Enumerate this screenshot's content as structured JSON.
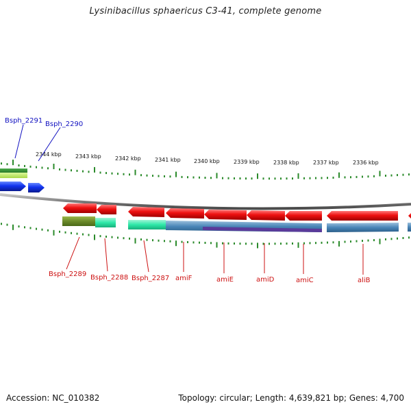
{
  "header": {
    "title": "Lysinibacillus sphaericus C3-41, complete genome"
  },
  "footer": {
    "accession": "Accession: NC_010382",
    "topology": "Topology: circular; Length: 4,639,821 bp; Genes: 4,700"
  },
  "colors": {
    "label_top": "#1010c0",
    "label_bottom": "#cc1010",
    "tick": "#2a8a2a",
    "backbone": "#8a8a8a",
    "gene_red": "#ee1111",
    "gene_blue": "#1133ee",
    "green_block": "#3a9a3a",
    "lime_block": "#b8e65a",
    "olive_block": "#6b8a2a",
    "cyan_block": "#3ee8b0",
    "steelblue_block": "#4a86b8",
    "purple_block": "#5a3a9a"
  },
  "ruler": [
    "2344 kbp",
    "2343 kbp",
    "2342 kbp",
    "2341 kbp",
    "2340 kbp",
    "2339 kbp",
    "2338 kbp",
    "2337 kbp",
    "2336 kbp"
  ],
  "labels_top": [
    "Bsph_2291",
    "Bsph_2290"
  ],
  "labels_bottom": [
    "Bsph_2289",
    "Bsph_2288",
    "Bsph_2287",
    "amiF",
    "amiE",
    "amiD",
    "amiC",
    "aliB"
  ]
}
